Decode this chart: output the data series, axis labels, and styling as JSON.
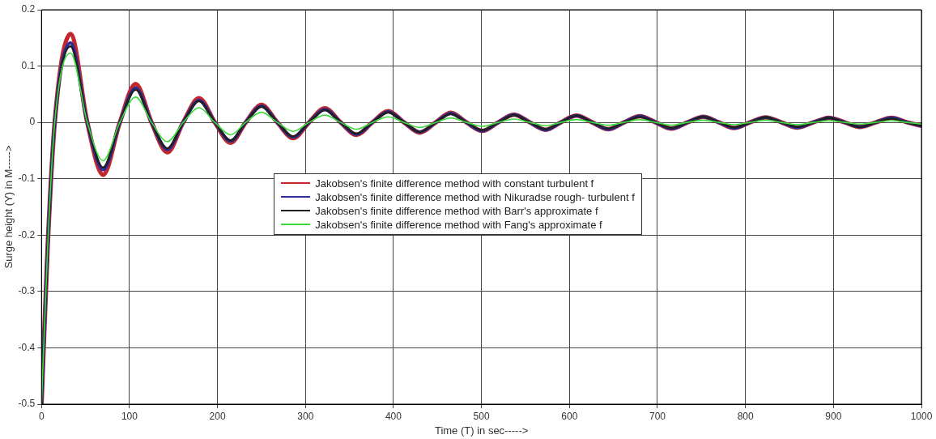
{
  "chart_data": {
    "type": "line",
    "xlabel": "Time (T) in sec----->",
    "ylabel": "Surge height (Y) in M----->",
    "x": [
      0,
      7,
      15,
      33,
      52,
      70,
      89,
      107,
      125,
      143,
      161,
      179,
      197,
      215,
      232,
      250,
      268,
      286,
      304,
      322,
      340,
      358,
      376,
      394,
      412,
      430,
      448,
      465,
      483,
      501,
      519,
      537,
      555,
      573,
      590,
      608,
      626,
      644,
      662,
      680,
      698,
      716,
      734,
      752,
      770,
      787,
      805,
      823,
      841,
      859,
      877,
      895,
      913,
      930,
      948,
      966,
      984,
      1000
    ],
    "series": [
      {
        "name": "Jakobsen's finite difference method with constant turbulent f",
        "color": "#c0282d",
        "values": [
          -0.5,
          -0.22,
          0,
          0.157,
          0,
          -0.093,
          0,
          0.068,
          0,
          -0.053,
          0,
          0.043,
          0,
          -0.036,
          0,
          0.031,
          0,
          -0.028,
          0,
          0.025,
          0,
          -0.022,
          0,
          0.02,
          0,
          -0.018,
          0,
          0.017,
          0,
          -0.015,
          0,
          0.014,
          0,
          -0.013,
          0,
          0.012,
          0,
          -0.012,
          0,
          0.011,
          0,
          -0.011,
          0,
          0.01,
          0,
          -0.01,
          0,
          0.009,
          0,
          -0.009,
          0,
          0.008,
          0,
          -0.008,
          0,
          0.008,
          0,
          -0.006
        ]
      },
      {
        "name": "Jakobsen's finite difference method with Nikuradse rough- turbulent f",
        "color": "#2a2a9a",
        "values": [
          -0.5,
          -0.22,
          0,
          0.141,
          0,
          -0.084,
          0,
          0.061,
          0,
          -0.048,
          0,
          0.039,
          0,
          -0.033,
          0,
          0.029,
          0,
          -0.026,
          0,
          0.023,
          0,
          -0.021,
          0,
          0.019,
          0,
          -0.017,
          0,
          0.016,
          0,
          -0.015,
          0,
          0.014,
          0,
          -0.013,
          0,
          0.012,
          0,
          -0.012,
          0,
          0.011,
          0,
          -0.011,
          0,
          0.01,
          0,
          -0.01,
          0,
          0.009,
          0,
          -0.009,
          0,
          0.008,
          0,
          -0.008,
          0,
          0.008,
          0,
          -0.006
        ]
      },
      {
        "name": "Jakobsen's finite difference method with Barr's approximate f",
        "color": "#202020",
        "values": [
          -0.5,
          -0.22,
          0,
          0.135,
          0,
          -0.08,
          0,
          0.058,
          0,
          -0.046,
          0,
          0.038,
          0,
          -0.032,
          0,
          0.028,
          0,
          -0.025,
          0,
          0.022,
          0,
          -0.02,
          0,
          0.018,
          0,
          -0.017,
          0,
          0.015,
          0,
          -0.014,
          0,
          0.013,
          0,
          -0.012,
          0,
          0.012,
          0,
          -0.011,
          0,
          0.01,
          0,
          -0.01,
          0,
          0.01,
          0,
          -0.009,
          0,
          0.009,
          0,
          -0.008,
          0,
          0.008,
          0,
          -0.008,
          0,
          0.007,
          0,
          -0.006
        ]
      },
      {
        "name": "Jakobsen's finite difference method with Fang's approximate f",
        "color": "#3ddc3d",
        "values": [
          -0.5,
          -0.22,
          0,
          0.123,
          0,
          -0.068,
          0,
          0.045,
          0,
          -0.034,
          0,
          0.026,
          0,
          -0.022,
          0,
          0.018,
          0,
          -0.016,
          0,
          0.013,
          0,
          -0.012,
          0,
          0.01,
          0,
          -0.009,
          0,
          0.008,
          0,
          -0.007,
          0,
          0.006,
          0,
          -0.006,
          0,
          0.005,
          0,
          -0.005,
          0,
          0.005,
          0,
          -0.005,
          0,
          0.004,
          0,
          -0.004,
          0,
          0.004,
          0,
          -0.004,
          0,
          0.003,
          0,
          -0.003,
          0,
          0.003,
          0,
          -0.003
        ]
      }
    ],
    "xlim": [
      0,
      1000
    ],
    "xticks": [
      0,
      100,
      200,
      300,
      400,
      500,
      600,
      700,
      800,
      900,
      1000
    ],
    "ylim": [
      -0.5,
      0.2
    ],
    "yticks": [
      -0.5,
      -0.4,
      -0.3,
      -0.2,
      -0.1,
      0,
      0.1,
      0.2
    ],
    "grid": true,
    "legend": "center",
    "marker": "none",
    "line_style": "solid"
  }
}
